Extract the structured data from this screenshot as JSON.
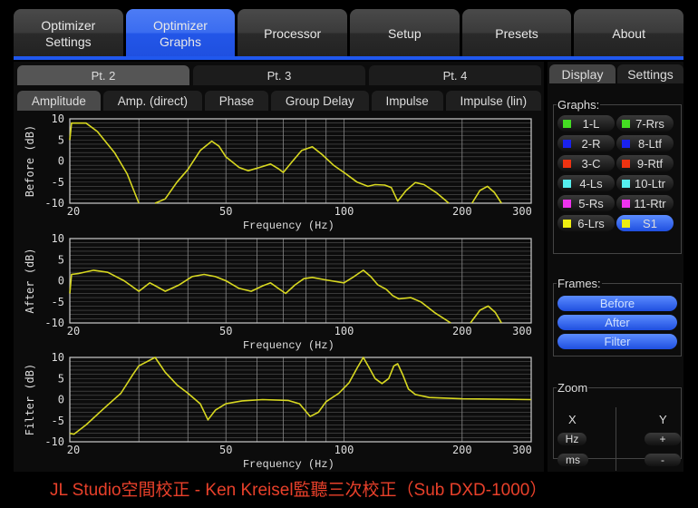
{
  "top_tabs": [
    {
      "label": "Optimizer\nSettings"
    },
    {
      "label": "Optimizer\nGraphs",
      "active": true
    },
    {
      "label": "Processor"
    },
    {
      "label": "Setup"
    },
    {
      "label": "Presets"
    },
    {
      "label": "About"
    }
  ],
  "point_tabs": [
    {
      "label": "Pt. 2",
      "active": true
    },
    {
      "label": "Pt. 3"
    },
    {
      "label": "Pt. 4"
    }
  ],
  "graph_tabs": [
    {
      "label": "Amplitude",
      "active": true
    },
    {
      "label": "Amp. (direct)"
    },
    {
      "label": "Phase"
    },
    {
      "label": "Group Delay"
    },
    {
      "label": "Impulse"
    },
    {
      "label": "Impulse (lin)"
    }
  ],
  "side_tabs": [
    {
      "label": "Display",
      "active": true
    },
    {
      "label": "Settings"
    }
  ],
  "graphs_legend": "Graphs:",
  "graph_buttons": [
    {
      "label": "1-L",
      "color": "#44dd22"
    },
    {
      "label": "7-Rrs",
      "color": "#44dd22"
    },
    {
      "label": "2-R",
      "color": "#1a22ee"
    },
    {
      "label": "8-Ltf",
      "color": "#1a22ee"
    },
    {
      "label": "3-C",
      "color": "#ee3311"
    },
    {
      "label": "9-Rtf",
      "color": "#ee3311"
    },
    {
      "label": "4-Ls",
      "color": "#55eeee"
    },
    {
      "label": "10-Ltr",
      "color": "#55eeee"
    },
    {
      "label": "5-Rs",
      "color": "#ee33ee"
    },
    {
      "label": "11-Rtr",
      "color": "#ee33ee"
    },
    {
      "label": "6-Lrs",
      "color": "#eeee11"
    },
    {
      "label": "S1",
      "color": "#eeee11",
      "active": true
    }
  ],
  "frames_legend": "Frames:",
  "frame_buttons": [
    "Before",
    "After",
    "Filter"
  ],
  "zoom": {
    "legend": "Zoom",
    "x_label": "X",
    "y_label": "Y",
    "hz": "Hz",
    "ms": "ms",
    "plus": "+",
    "minus": "-"
  },
  "caption": "JL Studio空間校正 - Ken Kreisel監聽三次校正（Sub  DXD-1000）",
  "chart_data": [
    {
      "type": "line",
      "ylabel": "Before (dB)",
      "xlabel": "Frequency (Hz)",
      "xscale": "log",
      "xlim": [
        20,
        300
      ],
      "ylim": [
        -10,
        10
      ],
      "xticks": [
        20,
        50,
        100,
        200,
        300
      ],
      "yticks": [
        10,
        5,
        0,
        -5,
        -10
      ],
      "grid": true,
      "color": "#d8d820",
      "segments": [
        [
          [
            20,
            5
          ],
          [
            20.2,
            9
          ],
          [
            22,
            9
          ],
          [
            23.5,
            7
          ],
          [
            26,
            2
          ],
          [
            28,
            -3
          ],
          [
            30,
            -10
          ]
        ],
        [
          [
            33,
            -10
          ],
          [
            35,
            -9
          ],
          [
            37.5,
            -5
          ],
          [
            40,
            -2
          ],
          [
            43,
            2.5
          ],
          [
            46,
            4.7
          ],
          [
            48,
            3.5
          ],
          [
            50,
            1
          ],
          [
            54,
            -1.5
          ],
          [
            57,
            -2.3
          ],
          [
            61,
            -1.5
          ],
          [
            65,
            -0.7
          ],
          [
            68,
            -1.8
          ],
          [
            70,
            -2.7
          ],
          [
            74,
            0
          ],
          [
            78,
            2.5
          ],
          [
            83,
            3.4
          ],
          [
            88,
            1.5
          ],
          [
            94,
            -1
          ],
          [
            101,
            -3
          ],
          [
            108,
            -5
          ],
          [
            115,
            -6
          ],
          [
            120,
            -5.6
          ],
          [
            127,
            -5.7
          ],
          [
            132,
            -6.3
          ],
          [
            137,
            -9.5
          ],
          [
            144,
            -7
          ],
          [
            152,
            -5.1
          ],
          [
            160,
            -5.6
          ],
          [
            172,
            -7.5
          ],
          [
            185,
            -10
          ]
        ],
        [
          [
            212,
            -10
          ],
          [
            222,
            -7
          ],
          [
            232,
            -6
          ],
          [
            242,
            -7.5
          ],
          [
            252,
            -10
          ]
        ]
      ]
    },
    {
      "type": "line",
      "ylabel": "After (dB)",
      "xlabel": "Frequency (Hz)",
      "xscale": "log",
      "xlim": [
        20,
        300
      ],
      "ylim": [
        -10,
        10
      ],
      "xticks": [
        20,
        50,
        100,
        200,
        300
      ],
      "yticks": [
        10,
        5,
        0,
        -5,
        -10
      ],
      "grid": true,
      "color": "#d8d820",
      "segments": [
        [
          [
            20,
            -3
          ],
          [
            20.2,
            1.5
          ],
          [
            21,
            1.7
          ],
          [
            23,
            2.5
          ],
          [
            25,
            2
          ],
          [
            27.5,
            0
          ],
          [
            30,
            -2.5
          ],
          [
            32,
            -0.5
          ],
          [
            33.5,
            -1.5
          ],
          [
            35,
            -2.5
          ],
          [
            38,
            -1
          ],
          [
            41,
            1
          ],
          [
            44,
            1.5
          ],
          [
            47,
            1
          ],
          [
            50,
            0
          ],
          [
            54,
            -1.8
          ],
          [
            58,
            -2.5
          ],
          [
            62,
            -1.2
          ],
          [
            65,
            -0.5
          ],
          [
            68,
            -1.8
          ],
          [
            71,
            -3
          ],
          [
            75,
            -1
          ],
          [
            79,
            0.5
          ],
          [
            83,
            0.8
          ],
          [
            90,
            0.2
          ],
          [
            100,
            -0.5
          ],
          [
            106,
            1
          ],
          [
            112,
            2.5
          ],
          [
            117,
            1
          ],
          [
            122,
            -1
          ],
          [
            128,
            -2
          ],
          [
            133,
            -3.5
          ],
          [
            138,
            -4.3
          ],
          [
            148,
            -4
          ],
          [
            157,
            -5
          ],
          [
            170,
            -7.5
          ],
          [
            187,
            -10
          ]
        ],
        [
          [
            210,
            -10
          ],
          [
            222,
            -7
          ],
          [
            233,
            -6
          ],
          [
            243,
            -7.5
          ],
          [
            252,
            -10
          ]
        ]
      ]
    },
    {
      "type": "line",
      "ylabel": "Filter (dB)",
      "xlabel": "Frequency (Hz)",
      "xscale": "log",
      "xlim": [
        20,
        300
      ],
      "ylim": [
        -10,
        10
      ],
      "xticks": [
        20,
        50,
        100,
        200,
        300
      ],
      "yticks": [
        10,
        5,
        0,
        -5,
        -10
      ],
      "grid": true,
      "color": "#d8d820",
      "segments": [
        [
          [
            20,
            -8
          ],
          [
            20.5,
            -8.2
          ],
          [
            22,
            -6
          ],
          [
            24.5,
            -2
          ],
          [
            27,
            1.5
          ],
          [
            29,
            6
          ],
          [
            30,
            8
          ],
          [
            33,
            10
          ],
          [
            35,
            6.5
          ],
          [
            37.5,
            3.5
          ],
          [
            40,
            1.5
          ],
          [
            43,
            -1
          ],
          [
            45,
            -4.8
          ],
          [
            47,
            -2.5
          ],
          [
            50,
            -1
          ],
          [
            55,
            -0.3
          ],
          [
            62,
            0
          ],
          [
            72,
            -0.2
          ],
          [
            77,
            -1
          ],
          [
            82,
            -4
          ],
          [
            86,
            -3
          ],
          [
            90,
            -0.5
          ],
          [
            97,
            1.5
          ],
          [
            103,
            4
          ],
          [
            108,
            7.5
          ],
          [
            112,
            10
          ],
          [
            116,
            7.5
          ],
          [
            120,
            5
          ],
          [
            125,
            3.8
          ],
          [
            130,
            5
          ],
          [
            134,
            8
          ],
          [
            137,
            8.5
          ],
          [
            141,
            6
          ],
          [
            146,
            2.5
          ],
          [
            152,
            1.2
          ],
          [
            165,
            0.5
          ],
          [
            200,
            0.2
          ],
          [
            300,
            0
          ]
        ]
      ]
    }
  ]
}
